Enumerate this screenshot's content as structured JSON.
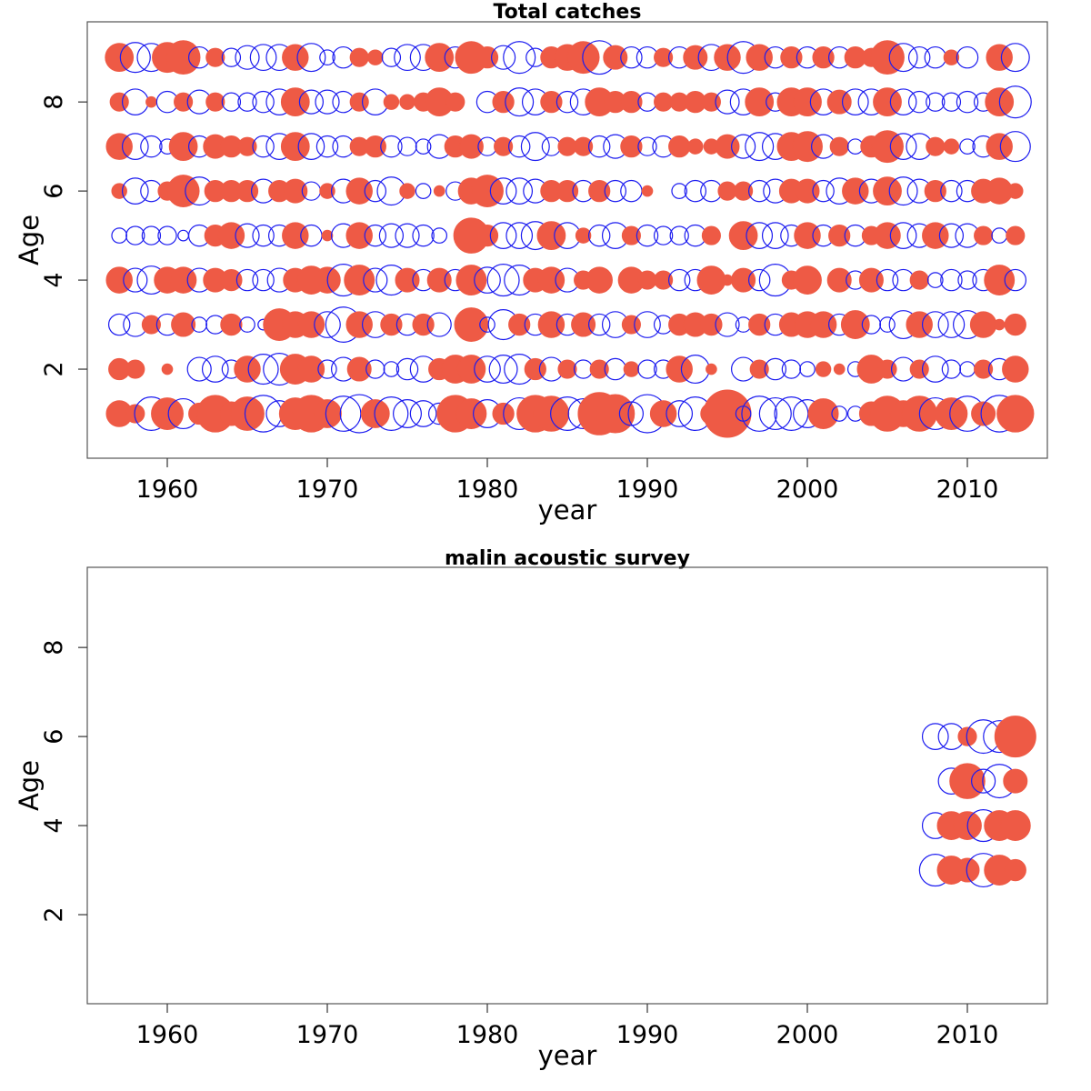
{
  "colors": {
    "positive": "#ee5a45",
    "negative": "#1c1cf0"
  },
  "encoding": "filled red circles = positive residuals, open blue circles = negative residuals; circle area proportional to magnitude",
  "chart_data": [
    {
      "type": "scatter",
      "title": "Total catches",
      "xlabel": "year",
      "ylabel": "Age",
      "xlim": [
        1955,
        2015
      ],
      "ylim": [
        0,
        9.8
      ],
      "xticks": [
        1960,
        1970,
        1980,
        1990,
        2000,
        2010
      ],
      "yticks": [
        2,
        4,
        6,
        8
      ],
      "grid": false,
      "years": [
        1957,
        1958,
        1959,
        1960,
        1961,
        1962,
        1963,
        1964,
        1965,
        1966,
        1967,
        1968,
        1969,
        1970,
        1971,
        1972,
        1973,
        1974,
        1975,
        1976,
        1977,
        1978,
        1979,
        1980,
        1981,
        1982,
        1983,
        1984,
        1985,
        1986,
        1987,
        1988,
        1989,
        1990,
        1991,
        1992,
        1993,
        1994,
        1995,
        1996,
        1997,
        1998,
        1999,
        2000,
        2001,
        2002,
        2003,
        2004,
        2005,
        2006,
        2007,
        2008,
        2009,
        2010,
        2011,
        2012,
        2013
      ],
      "ages": [
        1,
        2,
        3,
        4,
        5,
        6,
        7,
        8,
        9
      ],
      "residuals": {
        "1": [
          0.3,
          0.15,
          -0.5,
          0.45,
          -0.4,
          0.2,
          0.6,
          0.25,
          0.5,
          -0.6,
          -0.3,
          0.45,
          0.6,
          0.35,
          -0.55,
          -0.65,
          0.35,
          -0.5,
          -0.35,
          -0.3,
          -0.2,
          0.6,
          0.4,
          -0.35,
          0.2,
          -0.45,
          0.6,
          0.55,
          -0.5,
          -0.4,
          0.8,
          0.65,
          -0.25,
          -0.65,
          0.3,
          -0.3,
          -0.5,
          0.2,
          1.0,
          -0.1,
          -0.55,
          -0.45,
          -0.5,
          -0.35,
          0.4,
          -0.1,
          -0.1,
          0.25,
          0.55,
          0.3,
          0.55,
          -0.45,
          0.45,
          -0.55,
          0.25,
          -0.6,
          0.6
        ],
        "2": [
          0.2,
          0.15,
          0.0,
          0.05,
          0.0,
          -0.25,
          -0.3,
          -0.15,
          0.3,
          -0.4,
          -0.45,
          0.4,
          0.3,
          -0.15,
          -0.25,
          0.25,
          -0.15,
          -0.1,
          -0.2,
          -0.3,
          0.2,
          0.35,
          0.35,
          -0.3,
          -0.35,
          -0.4,
          0.2,
          -0.25,
          0.15,
          -0.15,
          0.15,
          -0.2,
          0.1,
          -0.15,
          -0.15,
          0.3,
          -0.35,
          0.05,
          0.0,
          -0.25,
          0.15,
          -0.2,
          -0.15,
          -0.1,
          0.1,
          0.05,
          -0.1,
          0.35,
          0.15,
          -0.25,
          0.15,
          -0.3,
          -0.15,
          -0.1,
          0.15,
          -0.2,
          0.3
        ],
        "3": [
          -0.2,
          -0.25,
          0.15,
          -0.2,
          0.25,
          -0.1,
          -0.15,
          0.2,
          -0.1,
          -0.05,
          0.45,
          0.3,
          0.3,
          -0.3,
          -0.55,
          0.3,
          -0.3,
          0.2,
          -0.2,
          0.2,
          -0.25,
          0.0,
          0.5,
          -0.1,
          -0.4,
          0.2,
          -0.2,
          0.3,
          -0.2,
          0.25,
          -0.2,
          -0.3,
          0.15,
          -0.3,
          -0.15,
          0.2,
          0.25,
          0.2,
          -0.25,
          -0.1,
          0.2,
          -0.2,
          0.25,
          0.3,
          0.3,
          -0.2,
          0.35,
          -0.15,
          -0.1,
          -0.35,
          0.3,
          -0.3,
          -0.3,
          -0.35,
          0.3,
          0.05,
          0.2
        ],
        "4": [
          0.3,
          -0.25,
          -0.35,
          0.3,
          0.3,
          -0.25,
          0.25,
          0.2,
          -0.2,
          -0.2,
          -0.25,
          0.25,
          0.35,
          0.3,
          -0.45,
          0.4,
          -0.25,
          -0.4,
          0.25,
          -0.2,
          0.25,
          -0.2,
          0.4,
          -0.3,
          -0.45,
          -0.4,
          0.25,
          0.3,
          -0.25,
          0.15,
          0.3,
          0.0,
          0.3,
          0.15,
          0.15,
          -0.2,
          -0.2,
          0.35,
          0.05,
          0.25,
          -0.2,
          -0.45,
          0.15,
          0.35,
          0.0,
          0.25,
          -0.15,
          0.25,
          -0.2,
          -0.2,
          0.15,
          -0.1,
          -0.2,
          -0.15,
          -0.2,
          0.4,
          -0.2
        ],
        "5": [
          -0.1,
          -0.15,
          -0.15,
          -0.15,
          -0.05,
          -0.2,
          0.2,
          0.3,
          -0.25,
          -0.2,
          -0.2,
          0.3,
          -0.2,
          0.05,
          -0.25,
          0.3,
          -0.2,
          -0.25,
          -0.25,
          -0.2,
          -0.1,
          0.0,
          0.55,
          0.2,
          -0.3,
          -0.3,
          -0.35,
          0.35,
          -0.3,
          0.1,
          -0.2,
          -0.3,
          0.15,
          -0.2,
          -0.15,
          -0.15,
          -0.2,
          0.15,
          0.0,
          0.35,
          -0.3,
          -0.3,
          -0.2,
          0.3,
          -0.2,
          0.2,
          -0.2,
          0.15,
          0.3,
          -0.3,
          -0.25,
          0.3,
          -0.25,
          -0.25,
          0.15,
          -0.1,
          0.15
        ],
        "6": [
          0.1,
          -0.3,
          -0.2,
          0.15,
          0.45,
          -0.35,
          0.2,
          0.2,
          0.2,
          -0.25,
          0.2,
          0.25,
          -0.15,
          0.1,
          -0.25,
          0.3,
          -0.2,
          -0.35,
          0.1,
          -0.1,
          0.05,
          -0.15,
          0.3,
          0.45,
          -0.3,
          -0.3,
          -0.25,
          0.2,
          0.2,
          -0.2,
          0.2,
          -0.2,
          -0.2,
          0.05,
          0.0,
          -0.1,
          -0.2,
          -0.2,
          0.15,
          0.15,
          -0.2,
          -0.25,
          0.25,
          0.25,
          -0.2,
          -0.3,
          0.3,
          -0.25,
          0.35,
          -0.35,
          -0.25,
          0.2,
          -0.2,
          -0.2,
          0.25,
          0.3,
          0.1
        ],
        "7": [
          0.3,
          -0.3,
          -0.2,
          -0.1,
          0.35,
          -0.2,
          0.25,
          0.2,
          0.15,
          -0.2,
          -0.3,
          0.35,
          -0.3,
          -0.2,
          -0.2,
          0.15,
          0.2,
          -0.2,
          -0.15,
          -0.1,
          -0.25,
          0.2,
          0.25,
          -0.15,
          0.15,
          -0.2,
          -0.35,
          -0.15,
          0.15,
          0.15,
          -0.2,
          -0.25,
          0.2,
          -0.15,
          -0.2,
          0.2,
          0.1,
          0.1,
          0.25,
          -0.25,
          -0.35,
          -0.3,
          0.35,
          0.4,
          -0.25,
          0.15,
          -0.1,
          0.2,
          0.45,
          -0.3,
          -0.3,
          0.15,
          0.1,
          -0.1,
          -0.2,
          0.3,
          -0.4
        ],
        "8": [
          0.15,
          -0.3,
          0.05,
          -0.2,
          0.15,
          -0.25,
          0.15,
          -0.15,
          -0.15,
          -0.2,
          -0.3,
          0.35,
          -0.25,
          -0.25,
          -0.2,
          0.15,
          -0.3,
          0.1,
          0.1,
          0.15,
          0.35,
          0.15,
          0.0,
          -0.2,
          0.2,
          -0.35,
          -0.3,
          0.2,
          -0.2,
          -0.3,
          0.35,
          0.2,
          0.2,
          -0.15,
          0.15,
          0.15,
          0.2,
          0.15,
          -0.25,
          -0.3,
          0.35,
          -0.15,
          0.35,
          0.35,
          -0.3,
          0.25,
          -0.3,
          -0.3,
          0.35,
          -0.3,
          -0.2,
          -0.15,
          -0.15,
          -0.2,
          -0.15,
          0.35,
          -0.45
        ],
        "9": [
          0.35,
          -0.4,
          -0.35,
          0.4,
          0.5,
          -0.2,
          0.15,
          -0.15,
          -0.25,
          -0.3,
          -0.3,
          0.3,
          -0.35,
          -0.1,
          -0.2,
          0.15,
          0.1,
          -0.15,
          -0.3,
          -0.3,
          0.35,
          -0.2,
          0.45,
          0.2,
          -0.25,
          -0.45,
          -0.15,
          0.2,
          0.3,
          0.45,
          -0.5,
          0.25,
          -0.2,
          -0.2,
          0.15,
          -0.2,
          0.25,
          -0.3,
          0.3,
          -0.45,
          0.3,
          -0.2,
          0.2,
          -0.2,
          0.2,
          -0.2,
          0.2,
          0.15,
          0.5,
          -0.35,
          -0.2,
          -0.2,
          0.1,
          -0.2,
          0.0,
          0.3,
          -0.35
        ]
      }
    },
    {
      "type": "scatter",
      "title": "malin  acoustic survey",
      "xlabel": "year",
      "ylabel": "Age",
      "xlim": [
        1955,
        2015
      ],
      "ylim": [
        0,
        9.8
      ],
      "xticks": [
        1960,
        1970,
        1980,
        1990,
        2000,
        2010
      ],
      "yticks": [
        2,
        4,
        6,
        8
      ],
      "grid": false,
      "years": [
        2008,
        2009,
        2010,
        2011,
        2012,
        2013
      ],
      "ages": [
        3,
        4,
        5,
        6
      ],
      "residuals": {
        "3": [
          -0.45,
          0.35,
          0.25,
          -0.5,
          0.4,
          0.2
        ],
        "4": [
          -0.3,
          0.35,
          0.35,
          -0.45,
          0.4,
          0.4
        ],
        "5": [
          0.0,
          -0.3,
          0.55,
          -0.25,
          -0.5,
          0.25
        ],
        "6": [
          -0.3,
          -0.3,
          0.15,
          -0.5,
          -0.45,
          0.75
        ]
      }
    }
  ]
}
